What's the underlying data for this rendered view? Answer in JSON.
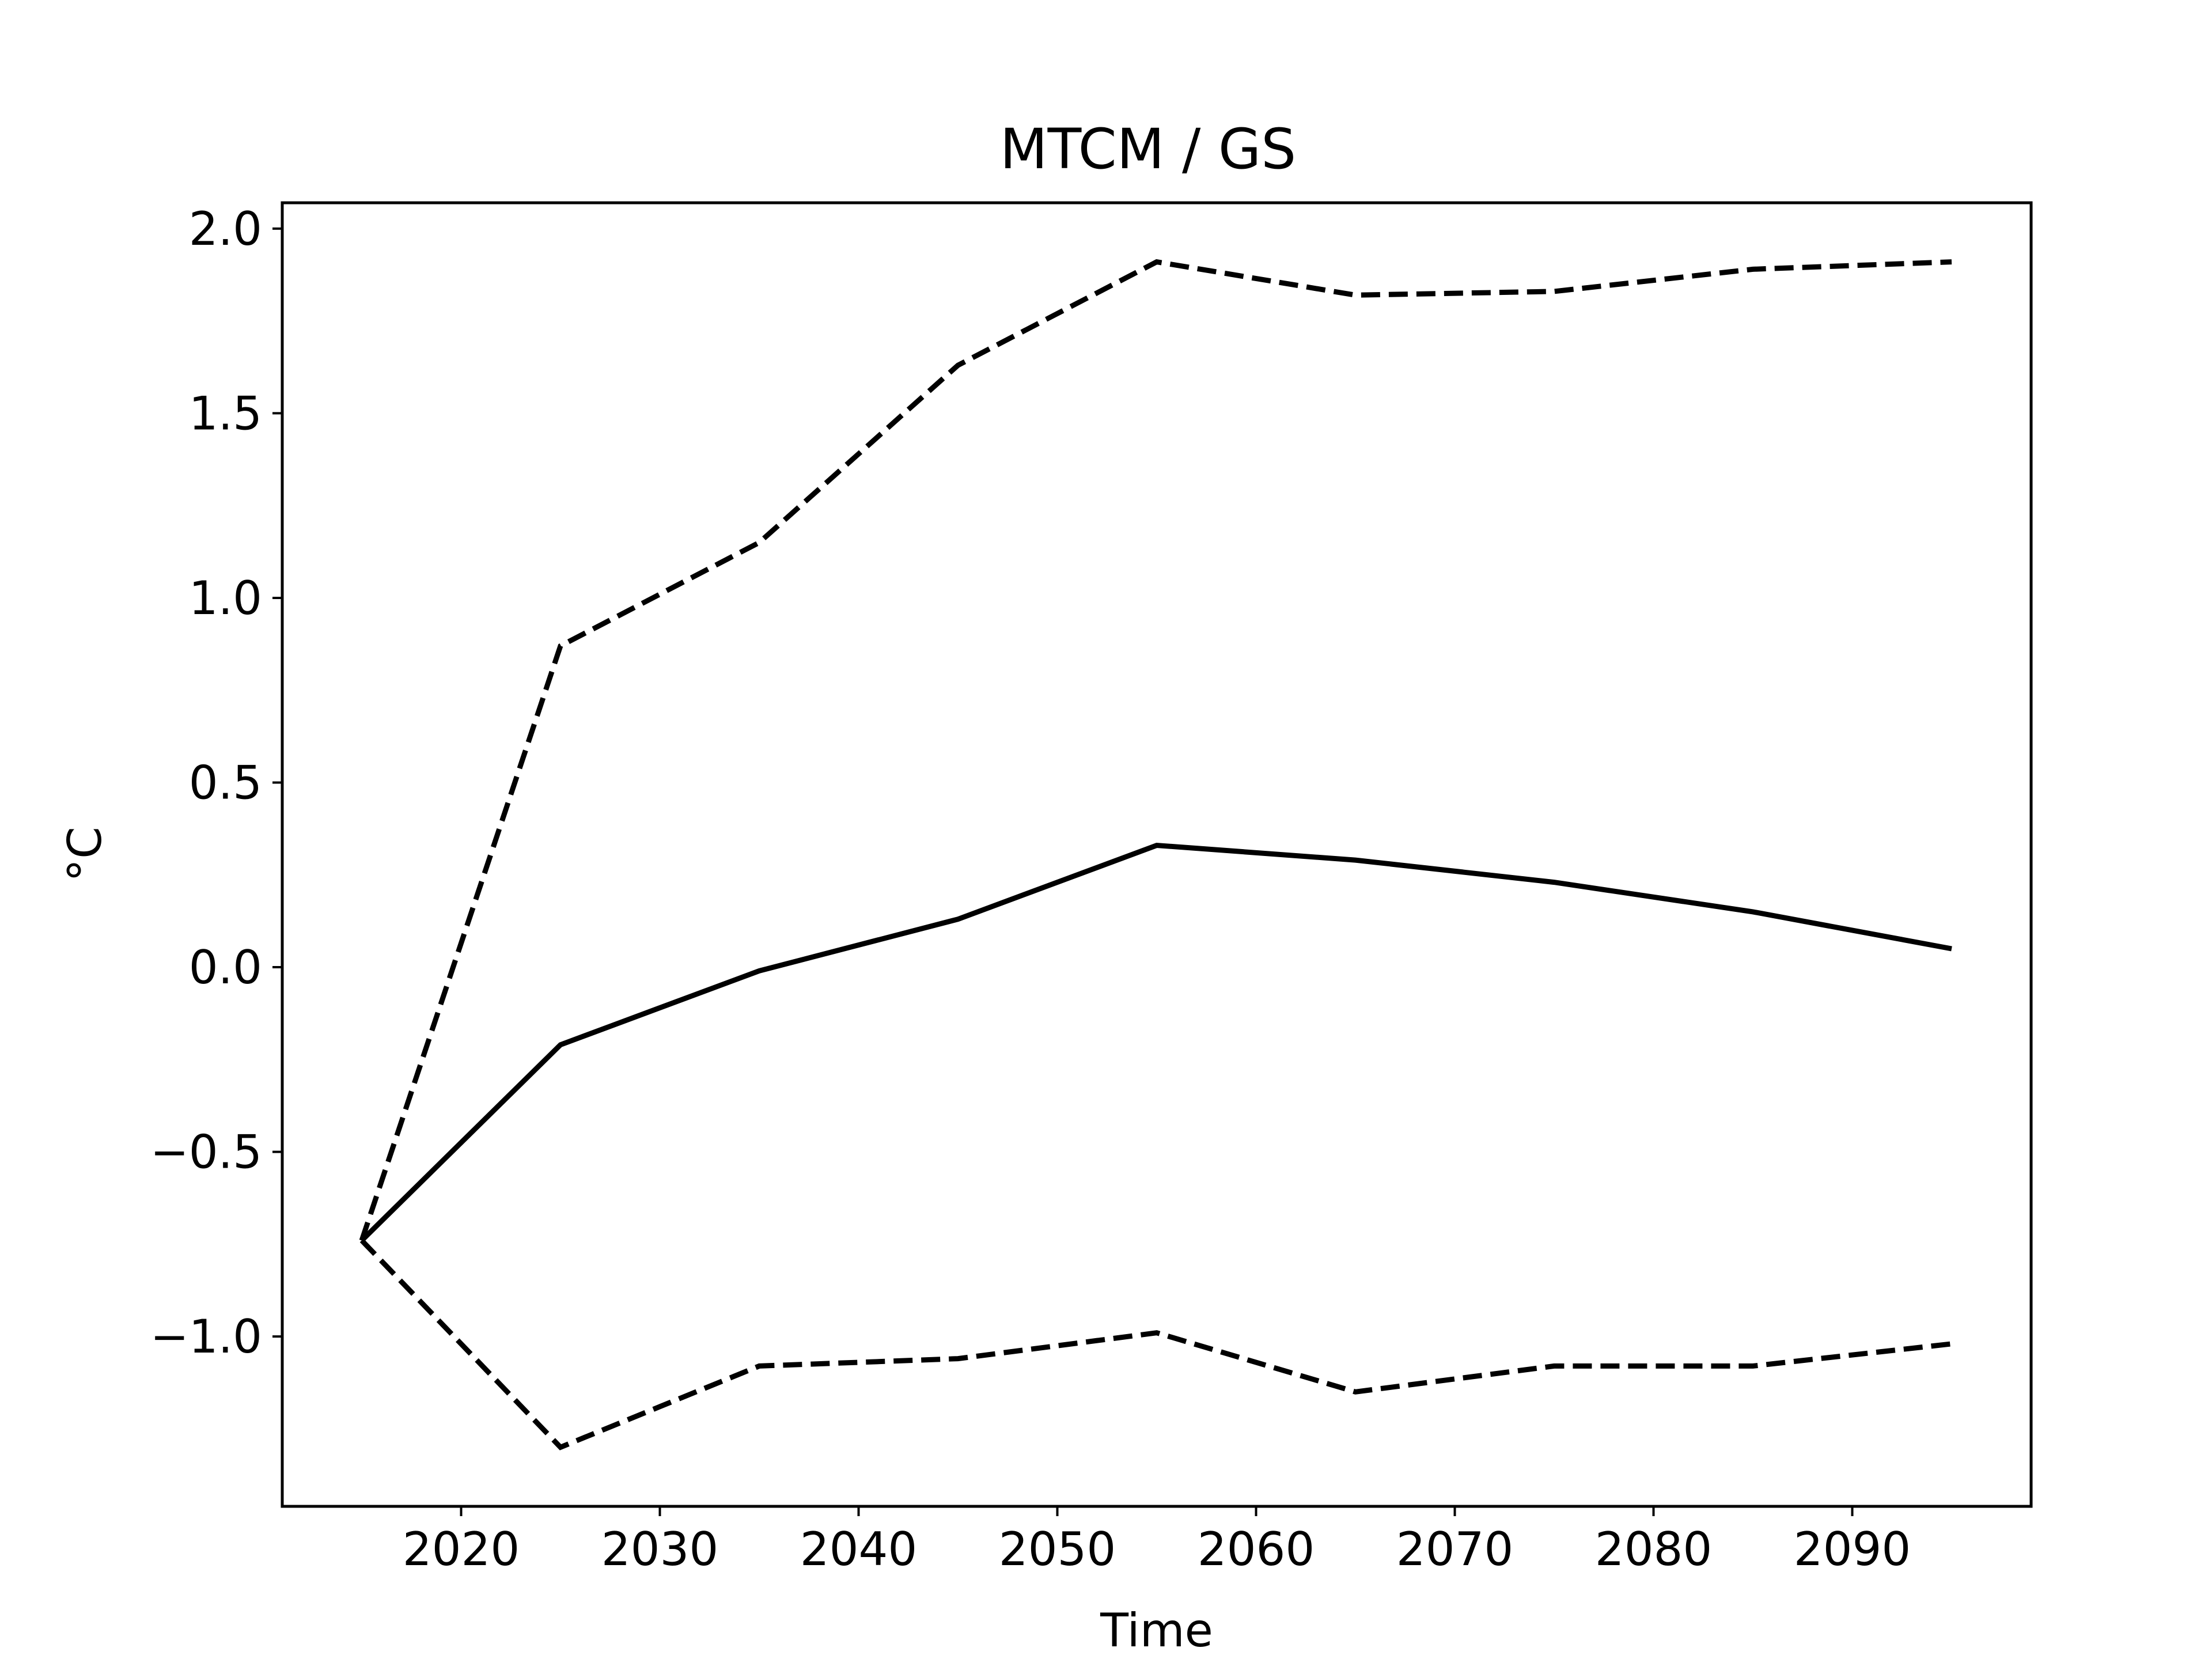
{
  "chart_data": {
    "type": "line",
    "title": "MTCM / GS",
    "xlabel": "Time",
    "ylabel": "°C",
    "xlim": [
      2011,
      2099
    ],
    "ylim": [
      -1.46,
      2.07
    ],
    "xticks": [
      2020,
      2030,
      2040,
      2050,
      2060,
      2070,
      2080,
      2090
    ],
    "yticks": [
      2.0,
      1.5,
      1.0,
      0.5,
      0.0,
      -0.5,
      -1.0
    ],
    "ytick_labels": [
      "2.0",
      "1.5",
      "1.0",
      "0.5",
      "0.0",
      "−0.5",
      "−1.0"
    ],
    "grid": false,
    "line_color": "#000000",
    "series": [
      {
        "style": "solid",
        "x": [
          2015,
          2025,
          2035,
          2045,
          2055,
          2065,
          2075,
          2085,
          2095
        ],
        "values": [
          -0.74,
          -0.21,
          -0.01,
          0.13,
          0.33,
          0.29,
          0.23,
          0.15,
          0.05
        ]
      },
      {
        "style": "dashed",
        "x": [
          2015,
          2025,
          2035,
          2045,
          2055,
          2065,
          2075,
          2085,
          2095
        ],
        "values": [
          -0.74,
          0.87,
          1.15,
          1.63,
          1.91,
          1.82,
          1.83,
          1.89,
          1.91
        ]
      },
      {
        "style": "dashed",
        "x": [
          2015,
          2025,
          2035,
          2045,
          2055,
          2065,
          2075,
          2085,
          2095
        ],
        "values": [
          -0.74,
          -1.3,
          -1.08,
          -1.06,
          -0.99,
          -1.15,
          -1.08,
          -1.08,
          -1.02
        ]
      }
    ]
  }
}
